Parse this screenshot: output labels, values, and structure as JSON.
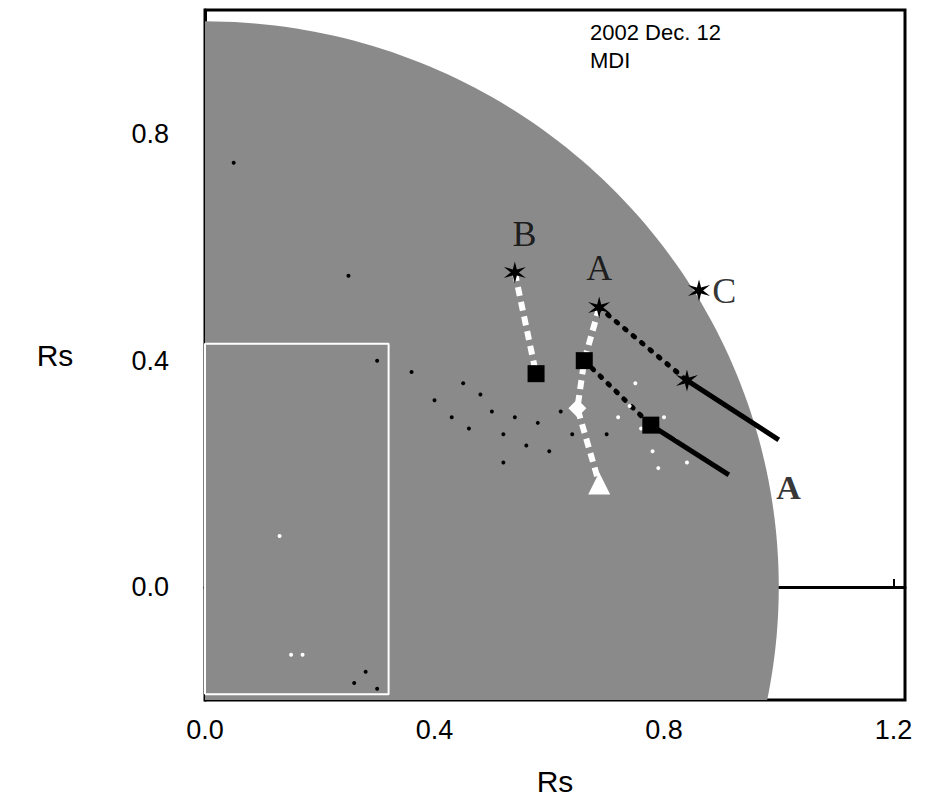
{
  "chart_data": {
    "type": "scatter",
    "title": "2002 Dec. 12",
    "subtitle": "MDI",
    "x_label": "Rs",
    "y_label": "Rs",
    "xlim": [
      0,
      1.22
    ],
    "ylim": [
      -0.2,
      1.02
    ],
    "xticks": [
      {
        "value": 0,
        "label": "0.0"
      },
      0.4,
      0.8,
      1.2
    ],
    "yticks": [
      {
        "value": 0,
        "label": "0.0"
      },
      0.4,
      0.8
    ],
    "grid": false,
    "disk": {
      "radius": 1,
      "color": "#8a8a8a"
    },
    "box": {
      "x": [
        0,
        0.32
      ],
      "y": [
        -0.19,
        0.43
      ],
      "color": "#ffffff"
    },
    "series": [
      {
        "type": "scatter",
        "marker": "circle",
        "color": "#000000",
        "x": [
          0.4,
          0.43,
          0.46,
          0.48,
          0.5,
          0.52,
          0.54,
          0.56,
          0.58,
          0.6,
          0.62,
          0.45,
          0.36,
          0.3,
          0.52,
          0.64,
          0.25,
          0.05,
          0.28,
          0.3,
          0.26,
          0.7
        ],
        "y": [
          0.33,
          0.3,
          0.28,
          0.34,
          0.31,
          0.27,
          0.3,
          0.25,
          0.29,
          0.24,
          0.31,
          0.36,
          0.38,
          0.4,
          0.22,
          0.27,
          0.55,
          0.75,
          -0.15,
          -0.18,
          -0.17,
          0.27
        ]
      },
      {
        "type": "scatter",
        "marker": "circle",
        "color": "#ffffff",
        "x": [
          0.74,
          0.76,
          0.78,
          0.8,
          0.82,
          0.79,
          0.75,
          0.84,
          0.72,
          0.15,
          0.17,
          0.13
        ],
        "y": [
          0.32,
          0.28,
          0.24,
          0.3,
          0.26,
          0.21,
          0.36,
          0.22,
          0.3,
          -0.12,
          -0.12,
          0.09
        ]
      },
      {
        "type": "line",
        "line_style": "dashed",
        "color": "#ffffff",
        "x": [
          0.54,
          0.577
        ],
        "y": [
          0.556,
          0.377
        ]
      },
      {
        "type": "line",
        "line_style": "dashed",
        "color": "#ffffff",
        "x": [
          0.687,
          0.661,
          0.649,
          0.687
        ],
        "y": [
          0.494,
          0.4,
          0.316,
          0.183
        ]
      },
      {
        "type": "line",
        "line_style": "dotted",
        "color": "#000000",
        "x": [
          0.687,
          0.84
        ],
        "y": [
          0.494,
          0.365
        ]
      },
      {
        "type": "line",
        "line_style": "dotted",
        "color": "#000000",
        "x": [
          0.661,
          0.777
        ],
        "y": [
          0.4,
          0.286
        ]
      },
      {
        "type": "arrow",
        "color": "#000000",
        "x": [
          0.84,
          1.0
        ],
        "y": [
          0.365,
          0.26
        ]
      },
      {
        "type": "arrow",
        "color": "#000000",
        "x": [
          0.777,
          0.913
        ],
        "y": [
          0.286,
          0.198
        ]
      },
      {
        "type": "scatter",
        "marker": "star",
        "color": "#000000",
        "x": [
          0.54,
          0.687,
          0.84,
          0.861
        ],
        "y": [
          0.556,
          0.494,
          0.365,
          0.524
        ]
      },
      {
        "type": "scatter",
        "marker": "square",
        "color": "#000000",
        "x": [
          0.577,
          0.661,
          0.777
        ],
        "y": [
          0.377,
          0.4,
          0.286
        ]
      },
      {
        "type": "scatter",
        "marker": "diamond",
        "color": "#ffffff",
        "x": [
          0.649
        ],
        "y": [
          0.316
        ]
      },
      {
        "type": "scatter",
        "marker": "triangle",
        "color": "#ffffff",
        "x": [
          0.687
        ],
        "y": [
          0.183
        ]
      }
    ],
    "annotations": [
      {
        "text": "B",
        "x": 0.557,
        "y": 0.624,
        "style": "serif"
      },
      {
        "text": "A",
        "x": 0.687,
        "y": 0.564,
        "style": "serif"
      },
      {
        "text": "C",
        "x": 0.905,
        "y": 0.524,
        "style": "serif"
      },
      {
        "text": "A",
        "x": 1.017,
        "y": 0.175,
        "style": "bold"
      }
    ]
  }
}
